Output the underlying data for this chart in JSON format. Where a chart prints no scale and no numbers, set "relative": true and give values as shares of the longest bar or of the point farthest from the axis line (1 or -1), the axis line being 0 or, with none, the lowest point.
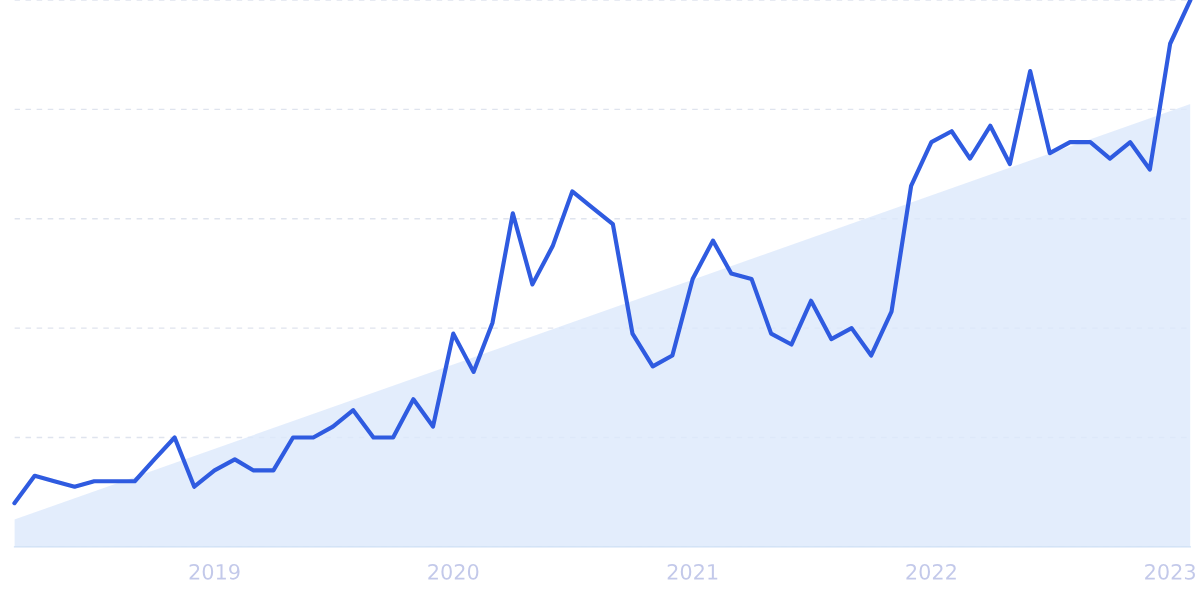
{
  "chart_data": {
    "type": "line",
    "relative": true,
    "grid": "y",
    "tick_labels": "x",
    "xlim": [
      "2018-03",
      "2023-02"
    ],
    "xticks": [
      "2019",
      "2020",
      "2021",
      "2022",
      "2023"
    ],
    "series": [
      {
        "type": "area",
        "color": "#dce9fb",
        "x": [
          "2018-03",
          "2023-02"
        ],
        "values": [
          0.05,
          0.81
        ]
      },
      {
        "color": "#2f5be0",
        "x": [
          "2018-03",
          "2018-04",
          "2018-05",
          "2018-06",
          "2018-07",
          "2018-08",
          "2018-09",
          "2018-10",
          "2018-11",
          "2018-12",
          "2019-01",
          "2019-02",
          "2019-03",
          "2019-04",
          "2019-05",
          "2019-06",
          "2019-07",
          "2019-08",
          "2019-09",
          "2019-10",
          "2019-11",
          "2019-12",
          "2020-01",
          "2020-02",
          "2020-03",
          "2020-04",
          "2020-05",
          "2020-06",
          "2020-07",
          "2020-08",
          "2020-09",
          "2020-10",
          "2020-11",
          "2020-12",
          "2021-01",
          "2021-02",
          "2021-03",
          "2021-04",
          "2021-05",
          "2021-06",
          "2021-07",
          "2021-08",
          "2021-09",
          "2021-10",
          "2021-11",
          "2021-12",
          "2022-01",
          "2022-02",
          "2022-03",
          "2022-04",
          "2022-05",
          "2022-06",
          "2022-07",
          "2022-08",
          "2022-09",
          "2022-10",
          "2022-11",
          "2022-12",
          "2023-01",
          "2023-02"
        ],
        "values": [
          0.08,
          0.13,
          0.12,
          0.11,
          0.12,
          0.12,
          0.12,
          0.16,
          0.2,
          0.11,
          0.14,
          0.16,
          0.14,
          0.14,
          0.2,
          0.2,
          0.22,
          0.25,
          0.2,
          0.2,
          0.27,
          0.22,
          0.39,
          0.32,
          0.41,
          0.61,
          0.48,
          0.55,
          0.65,
          0.62,
          0.59,
          0.39,
          0.33,
          0.35,
          0.49,
          0.56,
          0.5,
          0.49,
          0.39,
          0.37,
          0.45,
          0.38,
          0.4,
          0.35,
          0.43,
          0.66,
          0.74,
          0.76,
          0.71,
          0.77,
          0.7,
          0.87,
          0.72,
          0.74,
          0.74,
          0.71,
          0.74,
          0.69,
          0.92,
          1
        ]
      }
    ]
  }
}
